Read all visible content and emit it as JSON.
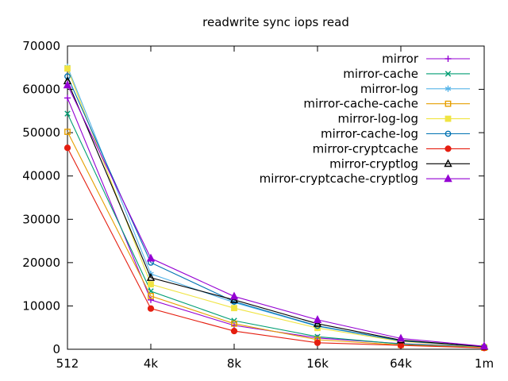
{
  "chart_data": {
    "type": "line",
    "title": "readwrite sync iops read",
    "xlabel": "",
    "ylabel": "",
    "categories": [
      "512",
      "4k",
      "8k",
      "16k",
      "64k",
      "1m"
    ],
    "ylim": [
      0,
      70000
    ],
    "yticks": [
      0,
      10000,
      20000,
      30000,
      40000,
      50000,
      60000,
      70000
    ],
    "grid": false,
    "legend_position": "top-right-inside",
    "series": [
      {
        "name": "mirror",
        "color": "#9400d3",
        "marker": "plus",
        "values": [
          58000,
          11400,
          5500,
          2600,
          1300,
          450
        ]
      },
      {
        "name": "mirror-cache",
        "color": "#009e73",
        "marker": "cross",
        "values": [
          54400,
          13400,
          6600,
          2900,
          1200,
          400
        ]
      },
      {
        "name": "mirror-log",
        "color": "#56b4e9",
        "marker": "asterisk",
        "values": [
          65200,
          17400,
          10800,
          5300,
          1900,
          550
        ]
      },
      {
        "name": "mirror-cache-cache",
        "color": "#e69f00",
        "marker": "square-open",
        "values": [
          50200,
          12300,
          5900,
          2200,
          1000,
          350
        ]
      },
      {
        "name": "mirror-log-log",
        "color": "#f0e442",
        "marker": "square-filled",
        "values": [
          64800,
          15000,
          9500,
          4900,
          1800,
          500
        ]
      },
      {
        "name": "mirror-cache-log",
        "color": "#0072b2",
        "marker": "circle-open",
        "values": [
          63000,
          20000,
          11000,
          5400,
          1950,
          550
        ]
      },
      {
        "name": "mirror-cryptcache",
        "color": "#e51e10",
        "marker": "circle-filled",
        "values": [
          46500,
          9400,
          4200,
          1500,
          900,
          300
        ]
      },
      {
        "name": "mirror-cryptlog",
        "color": "#000000",
        "marker": "triangle-open",
        "values": [
          61900,
          16500,
          11400,
          5900,
          2100,
          600
        ]
      },
      {
        "name": "mirror-cryptcache-cryptlog",
        "color": "#9400d3",
        "marker": "triangle-filled",
        "values": [
          61000,
          21000,
          12200,
          6800,
          2500,
          700
        ]
      }
    ],
    "axis_color": "#000000",
    "background": "#ffffff"
  }
}
